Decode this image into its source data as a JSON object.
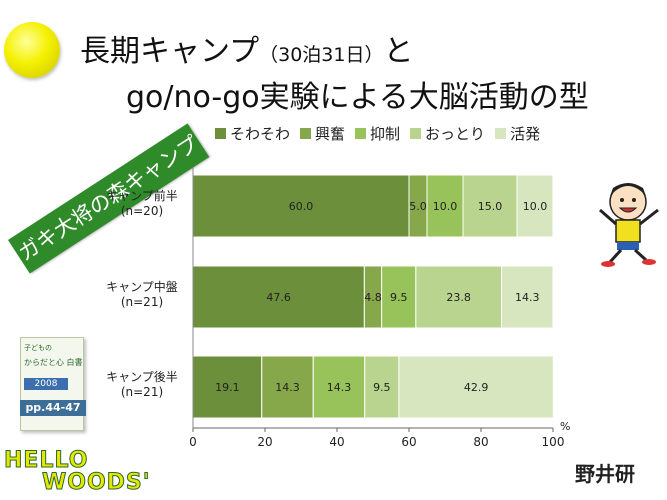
{
  "title_line1_main": "長期キャンプ",
  "title_line1_paren": "（30泊31日）",
  "title_line1_end": "と",
  "title_line2": "go/no-go実験による大脳活動の型",
  "banner": "ガキ大将の森キャンプ",
  "book": {
    "line1": "子どもの",
    "line2": "からだと心 白書",
    "year": "2008",
    "pages": "pp.44-47"
  },
  "logo": {
    "line1": "HELLO",
    "line2": "WOODS'"
  },
  "stamp": "野井研",
  "colors": {
    "そわそわ": "#6b8f3a",
    "興奮": "#86a84a",
    "抑制": "#98c25a",
    "おっとり": "#b9d48e",
    "活発": "#d8e6c0"
  },
  "chart_data": {
    "type": "bar",
    "orientation": "horizontal",
    "stacked": true,
    "categories": [
      "キャンプ前半",
      "キャンプ中盤",
      "キャンプ後半"
    ],
    "category_sublabels": [
      "(n=20)",
      "(n=21)",
      "(n=21)"
    ],
    "series": [
      {
        "name": "そわそわ",
        "values": [
          60.0,
          47.6,
          19.1
        ]
      },
      {
        "name": "興奮",
        "values": [
          5.0,
          4.8,
          14.3
        ]
      },
      {
        "name": "抑制",
        "values": [
          10.0,
          9.5,
          14.3
        ]
      },
      {
        "name": "おっとり",
        "values": [
          15.0,
          23.8,
          9.5
        ]
      },
      {
        "name": "活発",
        "values": [
          10.0,
          14.3,
          42.9
        ]
      }
    ],
    "value_labels": [
      [
        "60.0",
        "5.0",
        "10.0",
        "15.0",
        "10.0"
      ],
      [
        "47.6",
        "4.8",
        "9.5",
        "23.8",
        "14.3"
      ],
      [
        "19.1",
        "14.3",
        "14.3",
        "9.5",
        "42.9"
      ]
    ],
    "xlim": [
      0,
      100
    ],
    "xticks": [
      0,
      20,
      40,
      60,
      80,
      100
    ],
    "xunit": "%",
    "legend_position": "top",
    "grid": false
  }
}
